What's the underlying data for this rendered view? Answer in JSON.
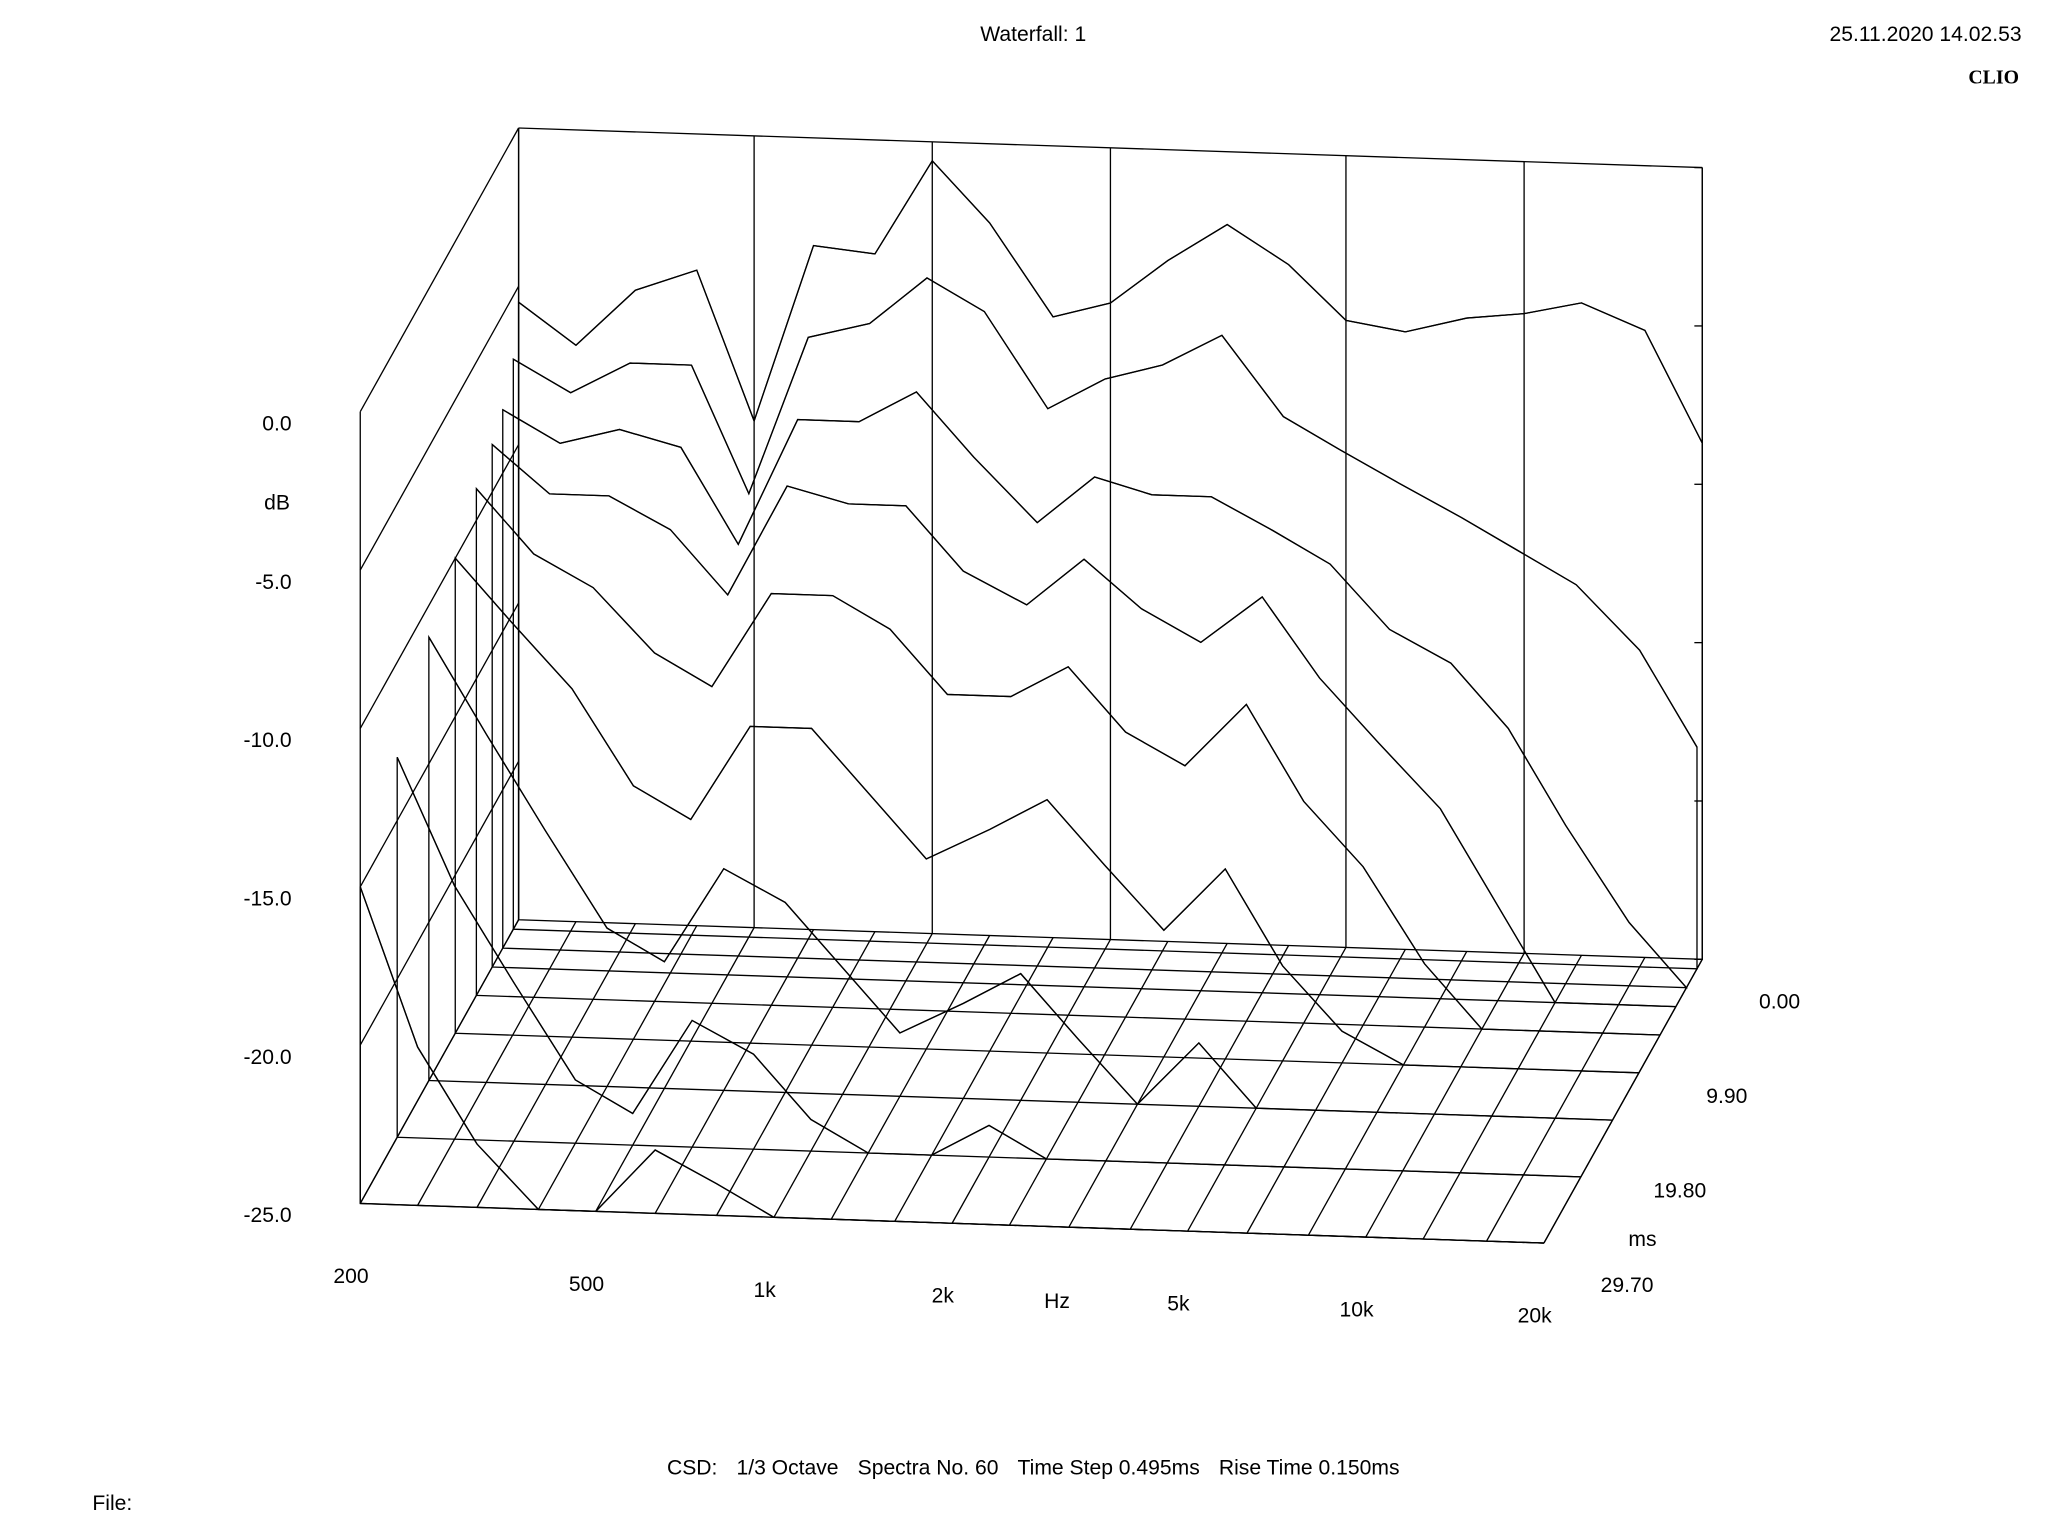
{
  "chart_data": {
    "type": "waterfall",
    "title": "Waterfall: 1",
    "timestamp": "25.11.2020 14.02.53",
    "brand": "CLIO",
    "y_label": "dB",
    "x_label": "Hz",
    "z_label": "ms",
    "footer": [
      "CSD:",
      "1/3 Octave",
      "Spectra No. 60",
      "Time Step 0.495ms",
      "Rise Time 0.150ms"
    ],
    "file_label": "File:",
    "xlim": [
      200,
      20000
    ],
    "xticks": [
      200,
      500,
      {
        "value": 1000,
        "label": "1k"
      },
      {
        "value": 2000,
        "label": "2k"
      },
      {
        "value": 5000,
        "label": "5k"
      },
      {
        "value": 10000,
        "label": "10k"
      },
      {
        "value": 20000,
        "label": "20k"
      }
    ],
    "log_x": true,
    "ylim": [
      -25,
      0
    ],
    "yticks": [
      {
        "value": 0,
        "label": "0.0"
      },
      {
        "value": -5,
        "label": "-5.0"
      },
      {
        "value": -10,
        "label": "-10.0"
      },
      {
        "value": -15,
        "label": "-15.0"
      },
      {
        "value": -20,
        "label": "-20.0"
      },
      {
        "value": -25,
        "label": "-25.0"
      }
    ],
    "zlim": [
      0,
      29.7
    ],
    "zticks": [
      {
        "value": 0,
        "label": "0.00"
      },
      {
        "value": 9.9,
        "label": "9.90"
      },
      {
        "value": 19.8,
        "label": "19.80"
      },
      {
        "value": 29.7,
        "label": "29.70"
      }
    ],
    "color": "#000000",
    "x": [
      200,
      250,
      315,
      400,
      500,
      630,
      800,
      1000,
      1250,
      1600,
      2000,
      2500,
      3150,
      4000,
      5000,
      6300,
      8000,
      10000,
      12500,
      16000,
      20000
    ],
    "spectra": [
      {
        "time": 0,
        "values": [
          -5.5,
          -6.8,
          -5,
          -4.3,
          -9,
          -3.4,
          -3.6,
          -0.6,
          -2.5,
          -5.4,
          -4.9,
          -3.5,
          -2.3,
          -3.5,
          -5.2,
          -5.5,
          -5,
          -4.8,
          -4.4,
          -5.2,
          -8.7
        ]
      },
      {
        "time": 0.99,
        "values": [
          -7,
          -8,
          -7,
          -7,
          -11,
          -6,
          -5.5,
          -4,
          -5,
          -8,
          -7,
          -6.5,
          -5.5,
          -8,
          -9,
          -10,
          -11,
          -12,
          -13,
          -15,
          -18
        ]
      },
      {
        "time": 2.97,
        "values": [
          -8,
          -9,
          -8.5,
          -9,
          -12,
          -8,
          -8,
          -7,
          -9,
          -11,
          -9.5,
          -10,
          -10,
          -11,
          -12,
          -14,
          -15,
          -17,
          -20,
          -23,
          -25
        ]
      },
      {
        "time": 4.95,
        "values": [
          -8.5,
          -10,
          -10,
          -11,
          -13,
          -9.5,
          -10,
          -10,
          -12,
          -13,
          -11.5,
          -13,
          -14,
          -12.5,
          -15,
          -17,
          -19,
          -22,
          -25,
          -25,
          -25
        ]
      },
      {
        "time": 7.92,
        "values": [
          -9,
          -11,
          -12,
          -14,
          -15,
          -12,
          -12,
          -13,
          -15,
          -15,
          -14,
          -16,
          -17,
          -15,
          -18,
          -20,
          -23,
          -25,
          -25,
          -25,
          -25
        ]
      },
      {
        "time": 11.88,
        "values": [
          -10,
          -12,
          -14,
          -17,
          -18,
          -15,
          -15,
          -17,
          -19,
          -18,
          -17,
          -19,
          -21,
          -19,
          -22,
          -24,
          -25,
          -25,
          -25,
          -25,
          -25
        ]
      },
      {
        "time": 16.83,
        "values": [
          -11,
          -14,
          -17,
          -20,
          -21,
          -18,
          -19,
          -21,
          -23,
          -22,
          -21,
          -23,
          -25,
          -23,
          -25,
          -25,
          -25,
          -25,
          -25,
          -25,
          -25
        ]
      },
      {
        "time": 22.77,
        "values": [
          -13,
          -17,
          -20,
          -23,
          -24,
          -21,
          -22,
          -24,
          -25,
          -25,
          -24,
          -25,
          -25,
          -25,
          -25,
          -25,
          -25,
          -25,
          -25,
          -25,
          -25
        ]
      },
      {
        "time": 29.7,
        "values": [
          -15,
          -20,
          -23,
          -25,
          -25,
          -23,
          -24,
          -25,
          -25,
          -25,
          -25,
          -25,
          -25,
          -25,
          -25,
          -25,
          -25,
          -25,
          -25,
          -25,
          -25
        ]
      }
    ]
  }
}
